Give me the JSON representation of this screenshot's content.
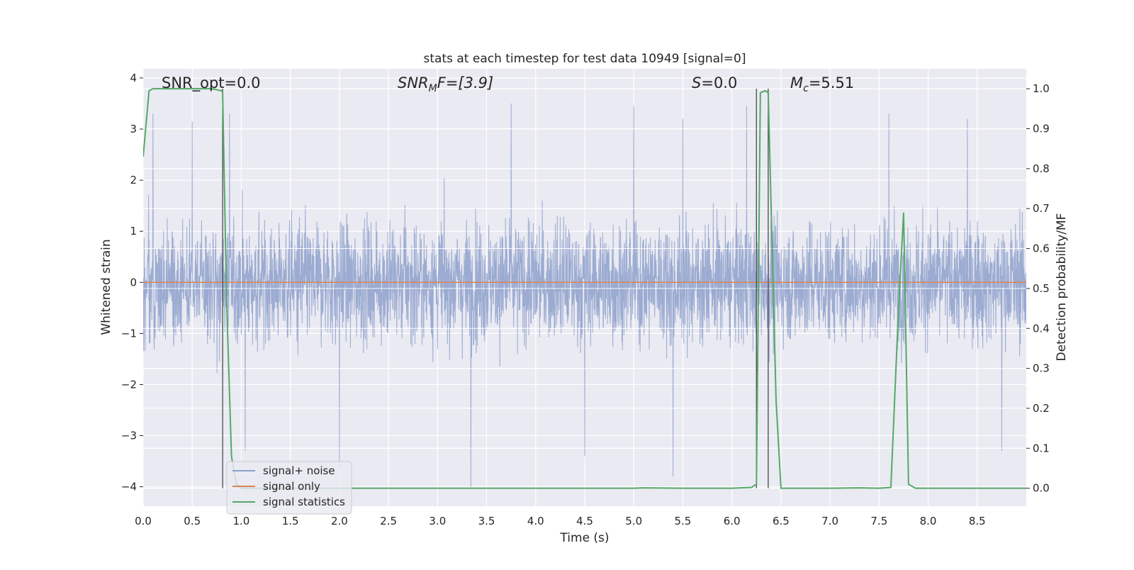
{
  "chart_data": {
    "type": "line",
    "title": "stats at each timestep for test data 10949 [signal=0]",
    "xlabel": "Time (s)",
    "ylabel_left": "Whitened strain",
    "ylabel_right": "Detection probability/MF",
    "xlim": [
      0.0,
      9.0
    ],
    "ylim_left": [
      -4.38,
      4.18
    ],
    "ylim_right": [
      -0.045,
      1.05
    ],
    "x_ticks": [
      0.0,
      0.5,
      1.0,
      1.5,
      2.0,
      2.5,
      3.0,
      3.5,
      4.0,
      4.5,
      5.0,
      5.5,
      6.0,
      6.5,
      7.0,
      7.5,
      8.0,
      8.5
    ],
    "x_tick_labels": [
      "0.0",
      "0.5",
      "1.0",
      "1.5",
      "2.0",
      "2.5",
      "3.0",
      "3.5",
      "4.0",
      "4.5",
      "5.0",
      "5.5",
      "6.0",
      "6.5",
      "7.0",
      "7.5",
      "8.0",
      "8.5"
    ],
    "y_left_ticks": [
      4,
      3,
      2,
      1,
      0,
      -1,
      -2,
      -3,
      -4
    ],
    "y_left_tick_labels": [
      "4",
      "3",
      "2",
      "1",
      "0",
      "−1",
      "−2",
      "−3",
      "−4"
    ],
    "y_right_ticks": [
      1.0,
      0.9,
      0.8,
      0.7,
      0.6,
      0.5,
      0.4,
      0.3,
      0.2,
      0.1,
      0.0
    ],
    "y_right_tick_labels": [
      "1.0",
      "0.9",
      "0.8",
      "0.7",
      "0.6",
      "0.5",
      "0.4",
      "0.3",
      "0.2",
      "0.1",
      "0.0"
    ],
    "grid": true,
    "legend_position": "lower-left",
    "annotations": {
      "snr_opt": "SNR_opt=0.0",
      "snr_mf_main": "SNR",
      "snr_mf_sub": "M",
      "snr_mf_tail": "F=[3.9]",
      "s_main": "S",
      "s_tail": "=0.0",
      "mc_main": "M",
      "mc_sub": "c",
      "mc_tail": "=5.51"
    },
    "vertical_markers_x": [
      0.81,
      6.25,
      6.37
    ],
    "series": [
      {
        "name": "signal+ noise",
        "color": "#8da0cb",
        "axis": "left",
        "kind": "noise",
        "x_range": [
          0.0,
          9.0
        ],
        "typical_envelope": [
          -1.7,
          1.8
        ],
        "peak_values": [
          {
            "x": 0.1,
            "y": 3.3
          },
          {
            "x": 0.5,
            "y": 3.15
          },
          {
            "x": 0.88,
            "y": 3.3
          },
          {
            "x": 1.04,
            "y": -3.3
          },
          {
            "x": 2.0,
            "y": -3.65
          },
          {
            "x": 3.34,
            "y": -4.0
          },
          {
            "x": 3.75,
            "y": 3.5
          },
          {
            "x": 4.5,
            "y": -3.4
          },
          {
            "x": 5.0,
            "y": 3.45
          },
          {
            "x": 5.4,
            "y": -3.8
          },
          {
            "x": 5.5,
            "y": 3.2
          },
          {
            "x": 6.15,
            "y": 3.45
          },
          {
            "x": 7.6,
            "y": 3.3
          },
          {
            "x": 8.4,
            "y": 3.2
          },
          {
            "x": 8.75,
            "y": -3.3
          }
        ]
      },
      {
        "name": "signal only",
        "color": "#dd8452",
        "axis": "left",
        "x": [
          0.0,
          9.0
        ],
        "y": [
          0.0,
          0.0
        ]
      },
      {
        "name": "signal statistics",
        "color": "#55a868",
        "axis": "right",
        "x": [
          0.0,
          0.06,
          0.1,
          0.2,
          0.3,
          0.4,
          0.5,
          0.6,
          0.7,
          0.8,
          0.81,
          0.85,
          0.9,
          0.95,
          1.0,
          2.0,
          3.0,
          4.0,
          5.0,
          5.1,
          5.5,
          6.0,
          6.2,
          6.25,
          6.29,
          6.34,
          6.37,
          6.45,
          6.5,
          7.0,
          7.3,
          7.5,
          7.62,
          7.7,
          7.75,
          7.8,
          7.87,
          8.0,
          9.0
        ],
        "y": [
          0.83,
          0.995,
          1.0,
          1.0,
          1.0,
          1.0,
          1.0,
          1.0,
          1.0,
          0.995,
          0.99,
          0.47,
          0.08,
          0.01,
          0.0,
          0.0,
          0.0,
          0.0,
          0.0,
          0.001,
          0.0,
          0.0,
          0.002,
          0.01,
          0.99,
          0.995,
          0.99,
          0.22,
          0.0,
          0.0,
          0.001,
          0.0,
          0.002,
          0.46,
          0.69,
          0.01,
          0.0,
          0.0,
          0.0
        ]
      }
    ]
  }
}
